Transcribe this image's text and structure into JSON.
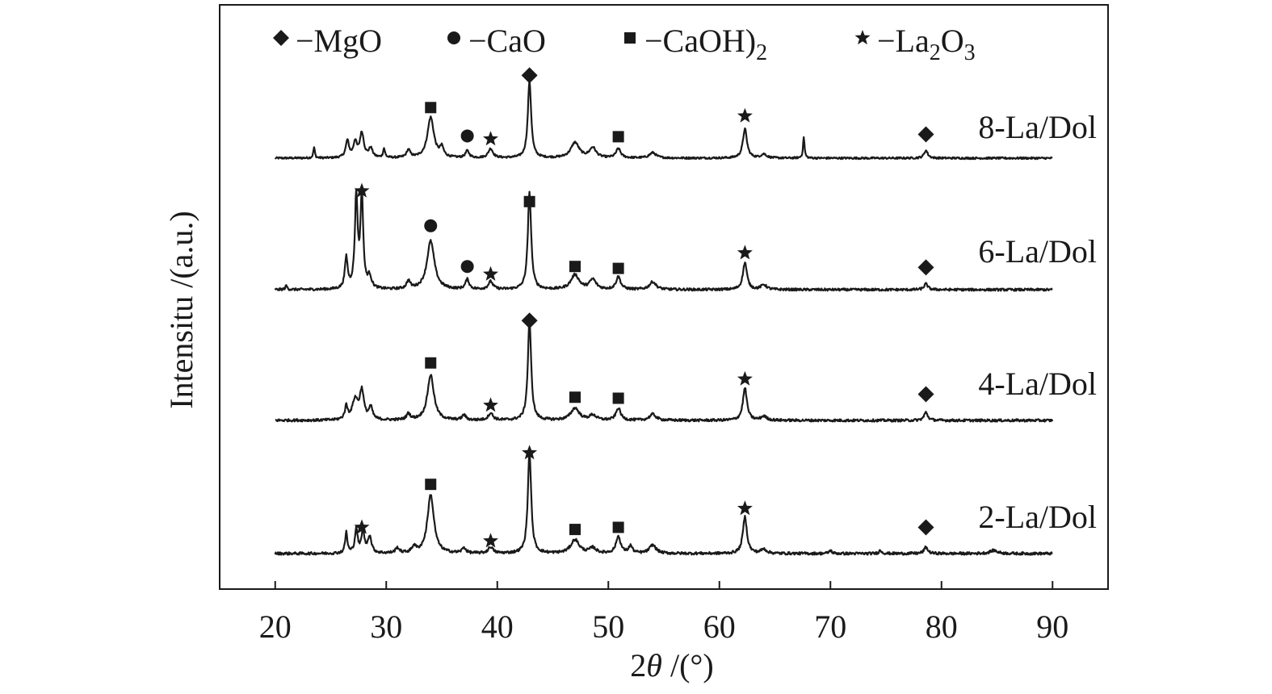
{
  "chart_data": {
    "type": "line",
    "xlabel_prefix": "2",
    "xlabel_symbol": "θ",
    "xlabel_unit": " /(°)",
    "ylabel": "Intensitu /(a.u.)",
    "xlim": [
      15,
      95
    ],
    "x_ticks": [
      20,
      30,
      40,
      50,
      60,
      70,
      80,
      90
    ],
    "x_range": [
      20,
      90
    ],
    "legend": [
      {
        "marker": "diamond",
        "text": "MgO"
      },
      {
        "marker": "circle",
        "text": "CaO"
      },
      {
        "marker": "square",
        "text": "CaOH)",
        "sub": "2"
      },
      {
        "marker": "star",
        "text": "La",
        "sub": "2",
        "text2": "O",
        "sub2": "3"
      }
    ],
    "legend_dash": "−",
    "series": [
      {
        "name": "8-La/Dol",
        "peaks": [
          {
            "x": 23.5,
            "h": 0.14,
            "w": 0.08
          },
          {
            "x": 26.5,
            "h": 0.22,
            "w": 0.18
          },
          {
            "x": 27.2,
            "h": 0.2,
            "w": 0.18
          },
          {
            "x": 27.8,
            "h": 0.32,
            "w": 0.22
          },
          {
            "x": 28.6,
            "h": 0.12,
            "w": 0.2
          },
          {
            "x": 29.8,
            "h": 0.12,
            "w": 0.1
          },
          {
            "x": 32.0,
            "h": 0.1,
            "w": 0.2
          },
          {
            "x": 34.0,
            "h": 0.53,
            "w": 0.35
          },
          {
            "x": 35.0,
            "h": 0.12,
            "w": 0.2
          },
          {
            "x": 37.3,
            "h": 0.09,
            "w": 0.2
          },
          {
            "x": 39.4,
            "h": 0.12,
            "w": 0.25
          },
          {
            "x": 42.9,
            "h": 1.0,
            "w": 0.18
          },
          {
            "x": 47.0,
            "h": 0.2,
            "w": 0.45
          },
          {
            "x": 48.6,
            "h": 0.13,
            "w": 0.35
          },
          {
            "x": 50.9,
            "h": 0.12,
            "w": 0.25
          },
          {
            "x": 54.0,
            "h": 0.07,
            "w": 0.35
          },
          {
            "x": 62.3,
            "h": 0.38,
            "w": 0.22
          },
          {
            "x": 64.0,
            "h": 0.05,
            "w": 0.3
          },
          {
            "x": 67.6,
            "h": 0.28,
            "w": 0.08
          },
          {
            "x": 78.6,
            "h": 0.1,
            "w": 0.2
          }
        ],
        "markers": [
          {
            "x": 34.0,
            "y": 0.66,
            "m": "square"
          },
          {
            "x": 37.3,
            "y": 0.29,
            "m": "circle"
          },
          {
            "x": 39.4,
            "y": 0.25,
            "m": "star"
          },
          {
            "x": 42.9,
            "y": 1.08,
            "m": "diamond"
          },
          {
            "x": 50.9,
            "y": 0.28,
            "m": "square"
          },
          {
            "x": 62.3,
            "y": 0.55,
            "m": "star"
          },
          {
            "x": 78.6,
            "y": 0.31,
            "m": "diamond"
          }
        ]
      },
      {
        "name": "6-La/Dol",
        "peaks": [
          {
            "x": 21.0,
            "h": 0.04,
            "w": 0.1
          },
          {
            "x": 26.4,
            "h": 0.32,
            "w": 0.15
          },
          {
            "x": 27.3,
            "h": 0.95,
            "w": 0.15
          },
          {
            "x": 27.8,
            "h": 0.95,
            "w": 0.15
          },
          {
            "x": 28.5,
            "h": 0.12,
            "w": 0.2
          },
          {
            "x": 32.0,
            "h": 0.08,
            "w": 0.2
          },
          {
            "x": 34.0,
            "h": 0.5,
            "w": 0.4
          },
          {
            "x": 37.3,
            "h": 0.1,
            "w": 0.2
          },
          {
            "x": 39.4,
            "h": 0.08,
            "w": 0.25
          },
          {
            "x": 42.9,
            "h": 1.0,
            "w": 0.18
          },
          {
            "x": 47.0,
            "h": 0.15,
            "w": 0.45
          },
          {
            "x": 48.6,
            "h": 0.1,
            "w": 0.35
          },
          {
            "x": 50.9,
            "h": 0.13,
            "w": 0.25
          },
          {
            "x": 54.0,
            "h": 0.08,
            "w": 0.35
          },
          {
            "x": 62.3,
            "h": 0.28,
            "w": 0.22
          },
          {
            "x": 64.0,
            "h": 0.05,
            "w": 0.3
          },
          {
            "x": 78.6,
            "h": 0.06,
            "w": 0.2
          }
        ],
        "markers": [
          {
            "x": 27.8,
            "y": 1.02,
            "m": "star"
          },
          {
            "x": 34.0,
            "y": 0.66,
            "m": "circle"
          },
          {
            "x": 37.3,
            "y": 0.24,
            "m": "circle"
          },
          {
            "x": 39.4,
            "y": 0.16,
            "m": "star"
          },
          {
            "x": 42.9,
            "y": 0.91,
            "m": "square"
          },
          {
            "x": 47.0,
            "y": 0.24,
            "m": "square"
          },
          {
            "x": 50.9,
            "y": 0.22,
            "m": "square"
          },
          {
            "x": 62.3,
            "y": 0.38,
            "m": "star"
          },
          {
            "x": 78.6,
            "y": 0.23,
            "m": "diamond"
          }
        ]
      },
      {
        "name": "4-La/Dol",
        "peaks": [
          {
            "x": 26.4,
            "h": 0.13,
            "w": 0.15
          },
          {
            "x": 27.2,
            "h": 0.2,
            "w": 0.3
          },
          {
            "x": 27.8,
            "h": 0.28,
            "w": 0.22
          },
          {
            "x": 28.6,
            "h": 0.12,
            "w": 0.2
          },
          {
            "x": 32.0,
            "h": 0.06,
            "w": 0.2
          },
          {
            "x": 34.0,
            "h": 0.45,
            "w": 0.35
          },
          {
            "x": 37.0,
            "h": 0.05,
            "w": 0.2
          },
          {
            "x": 39.4,
            "h": 0.07,
            "w": 0.25
          },
          {
            "x": 42.9,
            "h": 0.98,
            "w": 0.18
          },
          {
            "x": 47.0,
            "h": 0.12,
            "w": 0.45
          },
          {
            "x": 48.6,
            "h": 0.05,
            "w": 0.35
          },
          {
            "x": 50.9,
            "h": 0.12,
            "w": 0.25
          },
          {
            "x": 54.0,
            "h": 0.06,
            "w": 0.35
          },
          {
            "x": 62.3,
            "h": 0.32,
            "w": 0.22
          },
          {
            "x": 64.0,
            "h": 0.04,
            "w": 0.3
          },
          {
            "x": 78.6,
            "h": 0.08,
            "w": 0.2
          }
        ],
        "markers": [
          {
            "x": 34.0,
            "y": 0.57,
            "m": "square"
          },
          {
            "x": 39.4,
            "y": 0.15,
            "m": "star"
          },
          {
            "x": 42.9,
            "y": 0.99,
            "m": "diamond"
          },
          {
            "x": 47.0,
            "y": 0.23,
            "m": "square"
          },
          {
            "x": 50.9,
            "y": 0.22,
            "m": "square"
          },
          {
            "x": 62.3,
            "y": 0.41,
            "m": "star"
          },
          {
            "x": 78.6,
            "y": 0.26,
            "m": "diamond"
          }
        ]
      },
      {
        "name": "2-La/Dol",
        "peaks": [
          {
            "x": 26.4,
            "h": 0.2,
            "w": 0.12
          },
          {
            "x": 27.3,
            "h": 0.23,
            "w": 0.15
          },
          {
            "x": 27.9,
            "h": 0.22,
            "w": 0.15
          },
          {
            "x": 28.5,
            "h": 0.16,
            "w": 0.2
          },
          {
            "x": 31.0,
            "h": 0.05,
            "w": 0.2
          },
          {
            "x": 32.5,
            "h": 0.06,
            "w": 0.2
          },
          {
            "x": 34.0,
            "h": 0.56,
            "w": 0.35
          },
          {
            "x": 37.0,
            "h": 0.05,
            "w": 0.2
          },
          {
            "x": 39.4,
            "h": 0.06,
            "w": 0.25
          },
          {
            "x": 42.9,
            "h": 0.97,
            "w": 0.18
          },
          {
            "x": 47.0,
            "h": 0.13,
            "w": 0.45
          },
          {
            "x": 48.6,
            "h": 0.05,
            "w": 0.35
          },
          {
            "x": 50.9,
            "h": 0.16,
            "w": 0.25
          },
          {
            "x": 52.0,
            "h": 0.07,
            "w": 0.2
          },
          {
            "x": 54.0,
            "h": 0.08,
            "w": 0.35
          },
          {
            "x": 62.3,
            "h": 0.35,
            "w": 0.22
          },
          {
            "x": 64.0,
            "h": 0.04,
            "w": 0.3
          },
          {
            "x": 70.0,
            "h": 0.03,
            "w": 0.15
          },
          {
            "x": 74.5,
            "h": 0.03,
            "w": 0.15
          },
          {
            "x": 78.6,
            "h": 0.06,
            "w": 0.2
          },
          {
            "x": 84.7,
            "h": 0.03,
            "w": 0.4
          }
        ],
        "markers": [
          {
            "x": 34.0,
            "y": 0.66,
            "m": "square"
          },
          {
            "x": 27.8,
            "y": 0.25,
            "m": "star"
          },
          {
            "x": 39.4,
            "y": 0.12,
            "m": "star"
          },
          {
            "x": 42.9,
            "y": 0.96,
            "m": "star"
          },
          {
            "x": 47.0,
            "y": 0.23,
            "m": "square"
          },
          {
            "x": 50.9,
            "y": 0.25,
            "m": "square"
          },
          {
            "x": 62.3,
            "y": 0.43,
            "m": "star"
          },
          {
            "x": 78.6,
            "y": 0.25,
            "m": "diamond"
          }
        ]
      }
    ]
  }
}
